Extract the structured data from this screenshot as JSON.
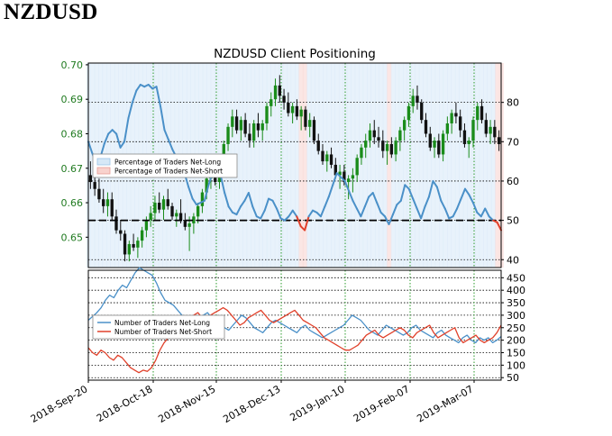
{
  "page_title": "NZDUSD",
  "colors": {
    "long_blue": "#4a90c8",
    "long_blue_dark": "#1f5fa0",
    "short_red": "#e0402a",
    "price_black": "#111111",
    "price_green": "#1a8c1a",
    "grid_green": "#2a9a2a",
    "left_axis_green": "#207a20",
    "fill_blue": "#d6e8f7",
    "fill_red": "#f8d2cd"
  },
  "chart_data": [
    {
      "type": "line",
      "title": "NZDUSD Client Positioning",
      "x_tick_labels": [
        "2018-Sep-20",
        "2018-Oct-18",
        "2018-Nov-15",
        "2018-Dec-13",
        "2019-Jan-10",
        "2019-Feb-07",
        "2019-Mar-07"
      ],
      "left_axis": {
        "ticks": [
          "0.65",
          "0.66",
          "0.67",
          "0.68",
          "0.69",
          "0.70"
        ],
        "ylim": [
          0.6412,
          0.7005
        ]
      },
      "right_axis": {
        "ticks": [
          "40",
          "50",
          "60",
          "70",
          "80"
        ],
        "ylim": [
          38,
          90
        ]
      },
      "reference_line": 50,
      "legend": [
        "Percentage of Traders Net-Long",
        "Percentage of Traders Net-Short"
      ],
      "legend_placement": "center-left",
      "price_candles": [
        [
          0.668,
          0.672,
          0.664,
          0.666
        ],
        [
          0.666,
          0.669,
          0.662,
          0.664
        ],
        [
          0.664,
          0.667,
          0.66,
          0.661
        ],
        [
          0.661,
          0.664,
          0.657,
          0.659
        ],
        [
          0.659,
          0.663,
          0.656,
          0.661
        ],
        [
          0.661,
          0.663,
          0.655,
          0.656
        ],
        [
          0.656,
          0.658,
          0.651,
          0.652
        ],
        [
          0.652,
          0.655,
          0.649,
          0.651
        ],
        [
          0.651,
          0.652,
          0.643,
          0.645
        ],
        [
          0.645,
          0.649,
          0.643,
          0.648
        ],
        [
          0.648,
          0.651,
          0.646,
          0.647
        ],
        [
          0.647,
          0.65,
          0.644,
          0.649
        ],
        [
          0.649,
          0.653,
          0.647,
          0.652
        ],
        [
          0.652,
          0.656,
          0.65,
          0.655
        ],
        [
          0.655,
          0.659,
          0.653,
          0.657
        ],
        [
          0.657,
          0.662,
          0.655,
          0.66
        ],
        [
          0.66,
          0.663,
          0.657,
          0.658
        ],
        [
          0.658,
          0.662,
          0.655,
          0.661
        ],
        [
          0.661,
          0.664,
          0.658,
          0.659
        ],
        [
          0.659,
          0.66,
          0.655,
          0.656
        ],
        [
          0.656,
          0.658,
          0.653,
          0.657
        ],
        [
          0.657,
          0.661,
          0.654,
          0.655
        ],
        [
          0.655,
          0.657,
          0.652,
          0.653
        ],
        [
          0.653,
          0.656,
          0.646,
          0.654
        ],
        [
          0.654,
          0.657,
          0.651,
          0.656
        ],
        [
          0.656,
          0.66,
          0.654,
          0.659
        ],
        [
          0.659,
          0.664,
          0.657,
          0.663
        ],
        [
          0.663,
          0.668,
          0.661,
          0.667
        ],
        [
          0.667,
          0.671,
          0.664,
          0.669
        ],
        [
          0.669,
          0.672,
          0.665,
          0.666
        ],
        [
          0.666,
          0.673,
          0.664,
          0.672
        ],
        [
          0.672,
          0.678,
          0.67,
          0.677
        ],
        [
          0.677,
          0.683,
          0.675,
          0.682
        ],
        [
          0.682,
          0.687,
          0.679,
          0.685
        ],
        [
          0.685,
          0.687,
          0.68,
          0.681
        ],
        [
          0.681,
          0.685,
          0.678,
          0.684
        ],
        [
          0.684,
          0.686,
          0.679,
          0.68
        ],
        [
          0.68,
          0.683,
          0.676,
          0.678
        ],
        [
          0.678,
          0.684,
          0.676,
          0.683
        ],
        [
          0.683,
          0.686,
          0.679,
          0.681
        ],
        [
          0.681,
          0.684,
          0.678,
          0.683
        ],
        [
          0.683,
          0.689,
          0.681,
          0.688
        ],
        [
          0.688,
          0.692,
          0.685,
          0.69
        ],
        [
          0.69,
          0.696,
          0.688,
          0.694
        ],
        [
          0.694,
          0.697,
          0.689,
          0.691
        ],
        [
          0.691,
          0.693,
          0.687,
          0.689
        ],
        [
          0.689,
          0.692,
          0.685,
          0.686
        ],
        [
          0.686,
          0.689,
          0.683,
          0.688
        ],
        [
          0.688,
          0.69,
          0.684,
          0.685
        ],
        [
          0.685,
          0.688,
          0.681,
          0.687
        ],
        [
          0.687,
          0.688,
          0.681,
          0.682
        ],
        [
          0.682,
          0.686,
          0.679,
          0.684
        ],
        [
          0.684,
          0.685,
          0.677,
          0.678
        ],
        [
          0.678,
          0.68,
          0.674,
          0.675
        ],
        [
          0.675,
          0.677,
          0.671,
          0.672
        ],
        [
          0.672,
          0.675,
          0.669,
          0.674
        ],
        [
          0.674,
          0.676,
          0.67,
          0.671
        ],
        [
          0.671,
          0.673,
          0.667,
          0.668
        ],
        [
          0.668,
          0.671,
          0.664,
          0.669
        ],
        [
          0.669,
          0.671,
          0.665,
          0.666
        ],
        [
          0.666,
          0.668,
          0.661,
          0.667
        ],
        [
          0.667,
          0.67,
          0.663,
          0.668
        ],
        [
          0.668,
          0.674,
          0.666,
          0.673
        ],
        [
          0.673,
          0.677,
          0.671,
          0.676
        ],
        [
          0.676,
          0.68,
          0.673,
          0.678
        ],
        [
          0.678,
          0.683,
          0.676,
          0.681
        ],
        [
          0.681,
          0.684,
          0.677,
          0.679
        ],
        [
          0.679,
          0.682,
          0.676,
          0.678
        ],
        [
          0.678,
          0.681,
          0.673,
          0.675
        ],
        [
          0.675,
          0.678,
          0.671,
          0.677
        ],
        [
          0.677,
          0.679,
          0.673,
          0.674
        ],
        [
          0.674,
          0.679,
          0.672,
          0.678
        ],
        [
          0.678,
          0.682,
          0.675,
          0.681
        ],
        [
          0.681,
          0.685,
          0.678,
          0.684
        ],
        [
          0.684,
          0.689,
          0.682,
          0.688
        ],
        [
          0.688,
          0.693,
          0.686,
          0.691
        ],
        [
          0.691,
          0.694,
          0.687,
          0.689
        ],
        [
          0.689,
          0.69,
          0.683,
          0.684
        ],
        [
          0.684,
          0.686,
          0.679,
          0.68
        ],
        [
          0.68,
          0.682,
          0.675,
          0.676
        ],
        [
          0.676,
          0.679,
          0.673,
          0.678
        ],
        [
          0.678,
          0.68,
          0.673,
          0.674
        ],
        [
          0.674,
          0.681,
          0.672,
          0.68
        ],
        [
          0.68,
          0.685,
          0.678,
          0.683
        ],
        [
          0.683,
          0.687,
          0.68,
          0.686
        ],
        [
          0.686,
          0.689,
          0.683,
          0.685
        ],
        [
          0.685,
          0.687,
          0.679,
          0.681
        ],
        [
          0.681,
          0.683,
          0.676,
          0.677
        ],
        [
          0.677,
          0.679,
          0.673,
          0.678
        ],
        [
          0.678,
          0.685,
          0.676,
          0.684
        ],
        [
          0.684,
          0.689,
          0.681,
          0.688
        ],
        [
          0.688,
          0.69,
          0.683,
          0.684
        ],
        [
          0.684,
          0.686,
          0.679,
          0.68
        ],
        [
          0.68,
          0.684,
          0.677,
          0.682
        ],
        [
          0.682,
          0.684,
          0.677,
          0.679
        ],
        [
          0.679,
          0.681,
          0.675,
          0.677
        ]
      ],
      "series": [
        {
          "name": "Percentage of Traders Net-Long",
          "axis": "right",
          "values": [
            70.0,
            67.0,
            64.5,
            66.0,
            69.5,
            72.0,
            73.0,
            72.0,
            68.5,
            70.0,
            76.0,
            80.0,
            83.0,
            84.5,
            84.0,
            84.5,
            83.5,
            84.0,
            79.0,
            73.0,
            70.5,
            68.0,
            66.0,
            63.5,
            62.0,
            58.5,
            55.5,
            54.0,
            54.5,
            55.0,
            59.0,
            62.0,
            63.5,
            61.5,
            57.0,
            53.5,
            52.0,
            51.5,
            53.5,
            55.0,
            57.0,
            53.5,
            51.0,
            50.5,
            52.5,
            55.5,
            55.0,
            53.0,
            50.5,
            50.0,
            51.0,
            52.5,
            51.0,
            48.5,
            47.5,
            51.0,
            52.5,
            52.0,
            51.0,
            53.5,
            56.0,
            59.0,
            62.0,
            61.0,
            60.0,
            57.5,
            55.0,
            53.0,
            51.0,
            53.5,
            56.0,
            57.0,
            54.5,
            52.0,
            51.0,
            49.0,
            51.5,
            54.0,
            55.0,
            59.0,
            58.0,
            55.5,
            53.0,
            50.5,
            53.5,
            56.0,
            60.0,
            58.5,
            55.0,
            53.0,
            50.5,
            51.0,
            53.0,
            55.5,
            58.0,
            56.5,
            54.5,
            52.0,
            51.0,
            53.0,
            51.0,
            50.0,
            49.5,
            47.5
          ]
        },
        {
          "name": "Number of Traders Net-Long",
          "axis": "bottom-right",
          "values": [
            280,
            295,
            310,
            330,
            360,
            380,
            370,
            400,
            420,
            410,
            440,
            470,
            490,
            480,
            470,
            460,
            430,
            390,
            360,
            350,
            340,
            320,
            300,
            290,
            280,
            270,
            285,
            300,
            310,
            290,
            270,
            260,
            250,
            240,
            260,
            280,
            300,
            290,
            270,
            250,
            240,
            230,
            250,
            270,
            280,
            270,
            260,
            250,
            240,
            230,
            250,
            260,
            240,
            230,
            220,
            210,
            220,
            230,
            240,
            250,
            260,
            280,
            300,
            290,
            280,
            260,
            240,
            230,
            220,
            240,
            260,
            250,
            240,
            230,
            220,
            230,
            250,
            260,
            240,
            230,
            220,
            210,
            230,
            240,
            220,
            210,
            200,
            190,
            210,
            220,
            200,
            190,
            210,
            200,
            210,
            190,
            200,
            215
          ]
        },
        {
          "name": "Number of Traders Net-Short",
          "axis": "bottom-right",
          "values": [
            170,
            150,
            140,
            160,
            150,
            130,
            120,
            140,
            130,
            110,
            90,
            80,
            70,
            80,
            75,
            90,
            120,
            160,
            190,
            210,
            220,
            250,
            260,
            270,
            280,
            300,
            310,
            290,
            280,
            300,
            310,
            320,
            330,
            320,
            300,
            280,
            260,
            270,
            290,
            300,
            310,
            320,
            300,
            280,
            270,
            280,
            290,
            300,
            310,
            320,
            300,
            280,
            270,
            260,
            250,
            230,
            210,
            200,
            190,
            180,
            170,
            160,
            160,
            170,
            180,
            200,
            220,
            230,
            240,
            220,
            210,
            220,
            230,
            240,
            250,
            240,
            220,
            210,
            230,
            240,
            250,
            260,
            230,
            210,
            220,
            230,
            240,
            250,
            210,
            190,
            200,
            210,
            220,
            200,
            190,
            200,
            210,
            230,
            260
          ]
        }
      ]
    },
    {
      "type": "line",
      "title": "",
      "right_axis": {
        "ticks": [
          "50",
          "100",
          "150",
          "200",
          "250",
          "300",
          "350",
          "400",
          "450"
        ],
        "ylim": [
          40,
          480
        ]
      },
      "legend": [
        "Number of Traders Net-Long",
        "Number of Traders Net-Short"
      ],
      "legend_placement": "upper-left"
    }
  ]
}
